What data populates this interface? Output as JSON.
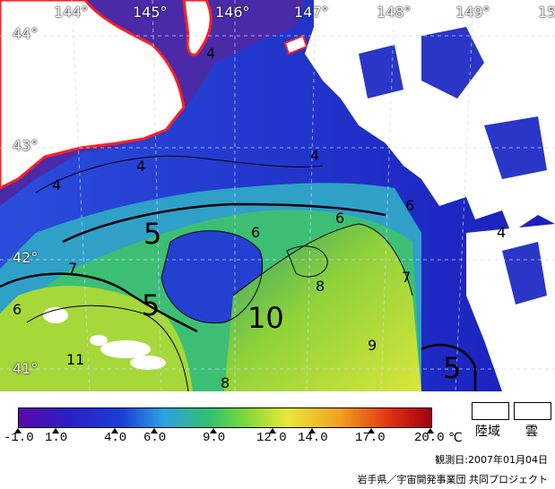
{
  "map": {
    "latitudes": [
      "44°",
      "43°",
      "42°",
      "41°"
    ],
    "longitudes": [
      "144°",
      "145°",
      "146°",
      "147°",
      "148°",
      "149°",
      "15"
    ],
    "contour_labels": [
      "4",
      "4",
      "4",
      "4",
      "5",
      "5",
      "6",
      "6",
      "6",
      "6",
      "7",
      "7",
      "8",
      "8",
      "9",
      "10",
      "11",
      "5",
      "4"
    ]
  },
  "legend": {
    "ticks": [
      "-1.0",
      "1.0",
      "4.0",
      "6.0",
      "9.0",
      "12.0",
      "14.0",
      "17.0",
      "20.0"
    ],
    "unit": "℃",
    "land_label": "陸域",
    "cloud_label": "雲"
  },
  "date_text": "観測日:2007年01月04日",
  "credit_text": "岩手県／宇宙開発事業団 共同プロジェクト",
  "colors": {
    "ocean_cold": "#1f3dc8",
    "ocean_mid": "#2a8f6a",
    "ocean_warm": "#d8e43a",
    "coast": "#ff2020",
    "land": "#ffffff"
  }
}
